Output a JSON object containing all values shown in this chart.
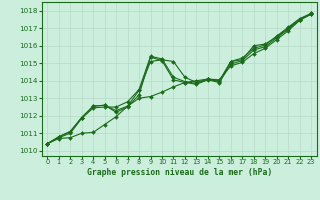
{
  "bg_color": "#cceedd",
  "line_color": "#1a6b1a",
  "grid_color": "#b8d8c8",
  "title": "Graphe pression niveau de la mer (hPa)",
  "title_color": "#1a6b1a",
  "xlim": [
    -0.5,
    23.5
  ],
  "ylim": [
    1009.7,
    1018.5
  ],
  "yticks": [
    1010,
    1011,
    1012,
    1013,
    1014,
    1015,
    1016,
    1017,
    1018
  ],
  "xticks": [
    0,
    1,
    2,
    3,
    4,
    5,
    6,
    7,
    8,
    9,
    10,
    11,
    12,
    13,
    14,
    15,
    16,
    17,
    18,
    19,
    20,
    21,
    22,
    23
  ],
  "series": [
    [
      1010.4,
      1010.7,
      1010.75,
      1011.0,
      1011.05,
      1011.5,
      1011.95,
      1012.55,
      1013.45,
      1015.1,
      1015.2,
      1015.1,
      1014.2,
      1013.9,
      1014.1,
      1014.0,
      1015.1,
      1015.2,
      1016.0,
      1016.1,
      1016.5,
      1017.0,
      1017.5,
      1017.8
    ],
    [
      1010.4,
      1010.75,
      1011.0,
      1011.85,
      1012.45,
      1012.5,
      1012.5,
      1012.8,
      1013.5,
      1015.4,
      1015.25,
      1014.2,
      1013.95,
      1013.85,
      1014.1,
      1013.95,
      1015.1,
      1015.3,
      1015.85,
      1016.05,
      1016.55,
      1017.05,
      1017.55,
      1017.85
    ],
    [
      1010.4,
      1010.8,
      1011.1,
      1011.9,
      1012.55,
      1012.6,
      1012.3,
      1012.55,
      1013.0,
      1013.1,
      1013.35,
      1013.65,
      1013.9,
      1014.0,
      1014.1,
      1014.05,
      1014.85,
      1015.05,
      1015.55,
      1015.85,
      1016.35,
      1016.85,
      1017.45,
      1017.85
    ],
    [
      1010.4,
      1010.8,
      1011.1,
      1011.9,
      1012.55,
      1012.6,
      1012.2,
      1012.5,
      1013.2,
      1015.35,
      1015.15,
      1014.05,
      1013.9,
      1013.8,
      1014.05,
      1013.9,
      1014.95,
      1015.15,
      1015.75,
      1015.95,
      1016.45,
      1016.95,
      1017.45,
      1017.8
    ]
  ]
}
